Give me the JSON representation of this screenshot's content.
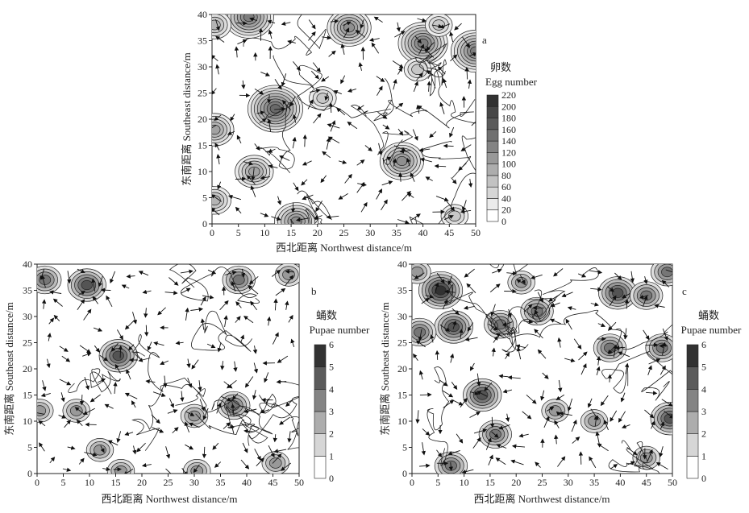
{
  "chart_data": [
    {
      "type": "contour",
      "panel_label": "a",
      "title": "",
      "xlabel": "西北距离 Northwest distance/m",
      "ylabel": "东南距离 Southeast distance/m",
      "xlim": [
        0,
        50
      ],
      "ylim": [
        0,
        40
      ],
      "xticks": [
        0,
        5,
        10,
        15,
        20,
        25,
        30,
        35,
        40,
        45,
        50
      ],
      "yticks": [
        0,
        5,
        10,
        15,
        20,
        25,
        30,
        35,
        40
      ],
      "colorbar": {
        "title_zh": "卵数",
        "title_en": "Egg number",
        "levels": [
          0,
          20,
          40,
          60,
          80,
          100,
          120,
          140,
          160,
          180,
          200,
          220
        ]
      },
      "hotspots": [
        {
          "x": 12,
          "y": 22,
          "level": 160
        },
        {
          "x": 36,
          "y": 12,
          "level": 120
        },
        {
          "x": 8,
          "y": 10,
          "level": 100
        },
        {
          "x": 40,
          "y": 34.5,
          "level": 140
        },
        {
          "x": 26,
          "y": 37.5,
          "level": 120
        },
        {
          "x": 7,
          "y": 39.5,
          "level": 140
        },
        {
          "x": 16,
          "y": 0.5,
          "level": 120
        },
        {
          "x": 50,
          "y": 33,
          "level": 140
        },
        {
          "x": 0.5,
          "y": 18,
          "level": 100
        },
        {
          "x": 0.5,
          "y": 4.5,
          "level": 80
        },
        {
          "x": 0.5,
          "y": 38,
          "level": 80
        },
        {
          "x": 46,
          "y": 1.5,
          "level": 60
        },
        {
          "x": 43,
          "y": 38,
          "level": 60
        },
        {
          "x": 39,
          "y": 29.5,
          "level": 60
        },
        {
          "x": 21,
          "y": 24,
          "level": 60
        }
      ]
    },
    {
      "type": "contour",
      "panel_label": "b",
      "title": "",
      "xlabel": "西北距离  Northwest distance/m",
      "ylabel": "东南距离 Southeast distance/m",
      "xlim": [
        0,
        50
      ],
      "ylim": [
        0,
        40
      ],
      "xticks": [
        0,
        5,
        10,
        15,
        20,
        25,
        30,
        35,
        40,
        45,
        50
      ],
      "yticks": [
        0,
        5,
        10,
        15,
        20,
        25,
        30,
        35,
        40
      ],
      "colorbar": {
        "title_zh": "蛹数",
        "title_en": "Pupae number",
        "levels": [
          0,
          1,
          2,
          3,
          4,
          5,
          6
        ]
      },
      "hotspots": [
        {
          "x": 15.5,
          "y": 22.5,
          "level": 5
        },
        {
          "x": 9.5,
          "y": 36,
          "level": 5
        },
        {
          "x": 1.5,
          "y": 37,
          "level": 4
        },
        {
          "x": 37.5,
          "y": 13,
          "level": 4
        },
        {
          "x": 38.5,
          "y": 37,
          "level": 4
        },
        {
          "x": 7.5,
          "y": 12,
          "level": 3
        },
        {
          "x": 30,
          "y": 11,
          "level": 3
        },
        {
          "x": 12,
          "y": 4.5,
          "level": 3
        },
        {
          "x": 30.5,
          "y": 0.5,
          "level": 3
        },
        {
          "x": 45.5,
          "y": 2,
          "level": 3
        },
        {
          "x": 0.5,
          "y": 12,
          "level": 3
        },
        {
          "x": 16,
          "y": 0.5,
          "level": 3
        },
        {
          "x": 48,
          "y": 38,
          "level": 3
        }
      ]
    },
    {
      "type": "contour",
      "panel_label": "c",
      "title": "",
      "xlabel": "西北距离  Northwest distance/m",
      "ylabel": "东南距离 Southeast distance/m",
      "xlim": [
        0,
        50
      ],
      "ylim": [
        0,
        40
      ],
      "xticks": [
        0,
        5,
        10,
        15,
        20,
        25,
        30,
        35,
        40,
        45,
        50
      ],
      "yticks": [
        0,
        5,
        10,
        15,
        20,
        25,
        30,
        35,
        40
      ],
      "colorbar": {
        "title_zh": "蛹数",
        "title_en": "Pupae number",
        "levels": [
          0,
          1,
          2,
          3,
          4,
          5,
          6
        ]
      },
      "hotspots": [
        {
          "x": 5.5,
          "y": 35,
          "level": 6
        },
        {
          "x": 13.5,
          "y": 15,
          "level": 5
        },
        {
          "x": 8,
          "y": 28,
          "level": 5
        },
        {
          "x": 39.5,
          "y": 34.5,
          "level": 5
        },
        {
          "x": 17,
          "y": 28.5,
          "level": 4
        },
        {
          "x": 24,
          "y": 31,
          "level": 4
        },
        {
          "x": 38,
          "y": 24,
          "level": 4
        },
        {
          "x": 48,
          "y": 24,
          "level": 4
        },
        {
          "x": 49.5,
          "y": 10.5,
          "level": 5
        },
        {
          "x": 1.5,
          "y": 27,
          "level": 4
        },
        {
          "x": 16,
          "y": 7.5,
          "level": 4
        },
        {
          "x": 7.5,
          "y": 1.5,
          "level": 4
        },
        {
          "x": 45,
          "y": 34,
          "level": 4
        },
        {
          "x": 49,
          "y": 38.5,
          "level": 4
        },
        {
          "x": 1,
          "y": 38.5,
          "level": 3
        },
        {
          "x": 45,
          "y": 3,
          "level": 3
        },
        {
          "x": 27.5,
          "y": 12,
          "level": 3
        },
        {
          "x": 35,
          "y": 10,
          "level": 3
        },
        {
          "x": 21,
          "y": 36.5,
          "level": 3
        }
      ]
    }
  ]
}
